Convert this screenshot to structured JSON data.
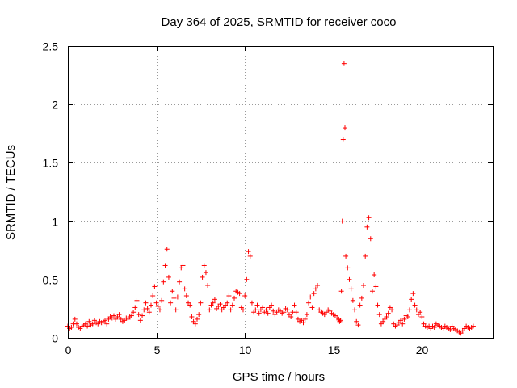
{
  "chart_data": {
    "type": "scatter",
    "title": "Day 364 of 2025, SRMTID for receiver coco",
    "xlabel": "GPS time / hours",
    "ylabel": "SRMTID / TECUs",
    "xlim": [
      0,
      24
    ],
    "ylim": [
      0,
      2.5
    ],
    "xticks": [
      0,
      5,
      10,
      15,
      20
    ],
    "xtick_labels": [
      "0",
      "5",
      "10",
      "15",
      "20"
    ],
    "yticks": [
      0,
      0.5,
      1,
      1.5,
      2,
      2.5
    ],
    "ytick_labels": [
      "0",
      "0.5",
      "1",
      "1.5",
      "2",
      "2.5"
    ],
    "grid": true,
    "marker": "+",
    "color": "#ff0000",
    "series": [
      {
        "name": "SRMTID",
        "x": [
          0.0,
          0.1,
          0.2,
          0.3,
          0.4,
          0.5,
          0.6,
          0.7,
          0.8,
          0.9,
          1.0,
          1.1,
          1.2,
          1.3,
          1.4,
          1.5,
          1.6,
          1.7,
          1.8,
          1.9,
          2.0,
          2.1,
          2.2,
          2.3,
          2.4,
          2.5,
          2.6,
          2.7,
          2.8,
          2.9,
          3.0,
          3.1,
          3.2,
          3.3,
          3.4,
          3.5,
          3.6,
          3.7,
          3.8,
          3.9,
          4.0,
          4.1,
          4.2,
          4.3,
          4.4,
          4.5,
          4.6,
          4.7,
          4.8,
          4.9,
          5.0,
          5.1,
          5.2,
          5.3,
          5.4,
          5.5,
          5.6,
          5.7,
          5.8,
          5.9,
          6.0,
          6.1,
          6.2,
          6.3,
          6.4,
          6.5,
          6.6,
          6.7,
          6.8,
          6.9,
          7.0,
          7.1,
          7.2,
          7.3,
          7.4,
          7.5,
          7.6,
          7.7,
          7.8,
          7.9,
          8.0,
          8.1,
          8.2,
          8.3,
          8.4,
          8.5,
          8.6,
          8.7,
          8.8,
          8.9,
          9.0,
          9.1,
          9.2,
          9.3,
          9.4,
          9.5,
          9.6,
          9.7,
          9.8,
          9.9,
          10.0,
          10.1,
          10.2,
          10.3,
          10.4,
          10.5,
          10.6,
          10.7,
          10.8,
          10.9,
          11.0,
          11.1,
          11.2,
          11.3,
          11.4,
          11.5,
          11.6,
          11.7,
          11.8,
          11.9,
          12.0,
          12.1,
          12.2,
          12.3,
          12.4,
          12.5,
          12.6,
          12.7,
          12.8,
          12.9,
          13.0,
          13.1,
          13.2,
          13.3,
          13.4,
          13.5,
          13.6,
          13.7,
          13.8,
          13.9,
          14.0,
          14.1,
          14.2,
          14.3,
          14.4,
          14.5,
          14.6,
          14.7,
          14.8,
          14.9,
          15.0,
          15.1,
          15.2,
          15.3,
          15.35,
          15.4,
          15.45,
          15.5,
          15.55,
          15.6,
          15.65,
          15.7,
          15.8,
          15.9,
          16.0,
          16.1,
          16.2,
          16.3,
          16.4,
          16.5,
          16.6,
          16.7,
          16.8,
          16.9,
          17.0,
          17.1,
          17.2,
          17.3,
          17.4,
          17.5,
          17.6,
          17.7,
          17.8,
          17.9,
          18.0,
          18.1,
          18.2,
          18.3,
          18.4,
          18.5,
          18.6,
          18.7,
          18.8,
          18.9,
          19.0,
          19.1,
          19.2,
          19.3,
          19.4,
          19.5,
          19.6,
          19.7,
          19.8,
          19.9,
          20.0,
          20.1,
          20.2,
          20.3,
          20.4,
          20.5,
          20.6,
          20.7,
          20.8,
          20.9,
          21.0,
          21.1,
          21.2,
          21.3,
          21.4,
          21.5,
          21.6,
          21.7,
          21.8,
          21.9,
          22.0,
          22.1,
          22.2,
          22.3,
          22.4,
          22.5,
          22.6,
          22.7,
          22.8,
          22.9
        ],
        "y": [
          0.1,
          0.08,
          0.09,
          0.12,
          0.16,
          0.12,
          0.09,
          0.08,
          0.1,
          0.11,
          0.12,
          0.1,
          0.14,
          0.11,
          0.12,
          0.15,
          0.13,
          0.12,
          0.14,
          0.13,
          0.14,
          0.15,
          0.12,
          0.16,
          0.18,
          0.17,
          0.19,
          0.16,
          0.18,
          0.2,
          0.16,
          0.14,
          0.15,
          0.17,
          0.16,
          0.18,
          0.19,
          0.22,
          0.26,
          0.32,
          0.2,
          0.15,
          0.19,
          0.24,
          0.3,
          0.25,
          0.22,
          0.28,
          0.36,
          0.44,
          0.3,
          0.27,
          0.24,
          0.32,
          0.48,
          0.62,
          0.76,
          0.52,
          0.3,
          0.4,
          0.34,
          0.24,
          0.35,
          0.48,
          0.6,
          0.62,
          0.42,
          0.36,
          0.3,
          0.28,
          0.18,
          0.14,
          0.12,
          0.16,
          0.2,
          0.3,
          0.52,
          0.62,
          0.56,
          0.45,
          0.24,
          0.28,
          0.3,
          0.33,
          0.25,
          0.27,
          0.29,
          0.24,
          0.26,
          0.28,
          0.3,
          0.36,
          0.24,
          0.28,
          0.34,
          0.4,
          0.39,
          0.38,
          0.26,
          0.24,
          0.36,
          0.5,
          0.74,
          0.7,
          0.3,
          0.22,
          0.24,
          0.28,
          0.21,
          0.24,
          0.26,
          0.22,
          0.24,
          0.21,
          0.26,
          0.28,
          0.23,
          0.2,
          0.22,
          0.24,
          0.23,
          0.21,
          0.22,
          0.25,
          0.24,
          0.2,
          0.18,
          0.22,
          0.28,
          0.22,
          0.16,
          0.14,
          0.15,
          0.13,
          0.16,
          0.2,
          0.3,
          0.35,
          0.26,
          0.38,
          0.42,
          0.45,
          0.24,
          0.22,
          0.21,
          0.2,
          0.22,
          0.24,
          0.23,
          0.21,
          0.2,
          0.19,
          0.17,
          0.16,
          0.14,
          0.15,
          0.4,
          1.0,
          1.7,
          2.35,
          1.8,
          0.7,
          0.6,
          0.5,
          0.42,
          0.32,
          0.24,
          0.14,
          0.11,
          0.28,
          0.34,
          0.45,
          0.7,
          0.95,
          1.03,
          0.85,
          0.4,
          0.54,
          0.44,
          0.28,
          0.2,
          0.12,
          0.14,
          0.16,
          0.18,
          0.21,
          0.26,
          0.24,
          0.12,
          0.1,
          0.11,
          0.13,
          0.15,
          0.12,
          0.16,
          0.19,
          0.18,
          0.24,
          0.33,
          0.38,
          0.28,
          0.24,
          0.2,
          0.22,
          0.18,
          0.12,
          0.1,
          0.09,
          0.1,
          0.08,
          0.1,
          0.09,
          0.12,
          0.11,
          0.1,
          0.09,
          0.08,
          0.1,
          0.09,
          0.08,
          0.07,
          0.1,
          0.08,
          0.07,
          0.06,
          0.05,
          0.04,
          0.06,
          0.08,
          0.1,
          0.09,
          0.08,
          0.09,
          0.1
        ]
      }
    ]
  }
}
